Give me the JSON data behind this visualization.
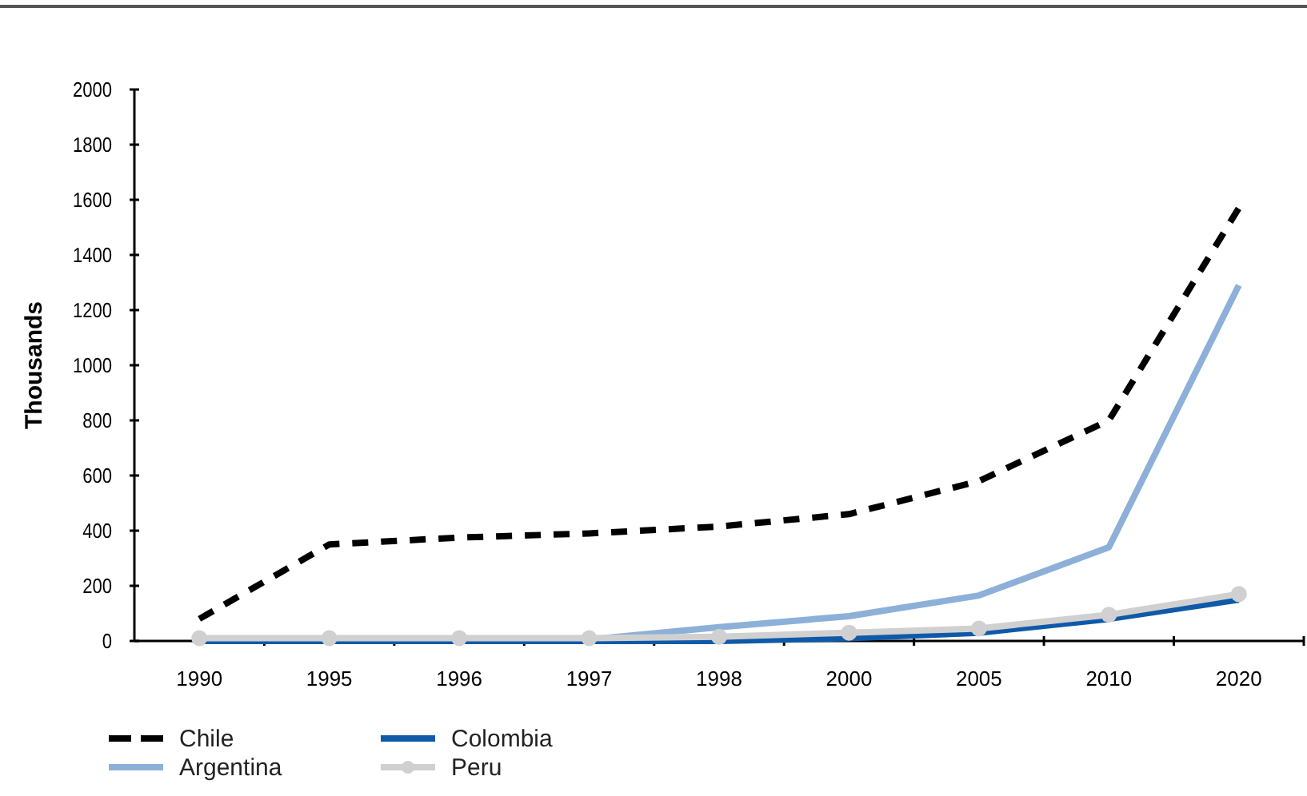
{
  "chart_data": {
    "type": "line",
    "ylabel": "Thousands",
    "categories": [
      "1990",
      "1995",
      "1996",
      "1997",
      "1998",
      "2000",
      "2005",
      "2010",
      "2020"
    ],
    "series": [
      {
        "name": "Chile",
        "color": "#000000",
        "line_style": "dashed",
        "marker": "none",
        "values": [
          80,
          350,
          375,
          390,
          415,
          460,
          580,
          800,
          1570
        ]
      },
      {
        "name": "Argentina",
        "color": "#8db0d8",
        "line_style": "solid",
        "marker": "none",
        "values": [
          0,
          0,
          0,
          5,
          50,
          90,
          165,
          340,
          1290
        ]
      },
      {
        "name": "Colombia",
        "color": "#0f5aa8",
        "line_style": "solid",
        "marker": "none",
        "values": [
          0,
          0,
          0,
          0,
          0,
          10,
          30,
          80,
          150
        ]
      },
      {
        "name": "Peru",
        "color": "#d0d0d0",
        "line_style": "solid",
        "marker": "circle",
        "values": [
          10,
          10,
          10,
          10,
          15,
          30,
          45,
          95,
          170
        ]
      }
    ],
    "ylim": [
      0,
      2000
    ],
    "yticks": [
      0,
      200,
      400,
      600,
      800,
      1000,
      1200,
      1400,
      1600,
      1800,
      2000
    ],
    "grid": false,
    "legend": "bottom left"
  }
}
